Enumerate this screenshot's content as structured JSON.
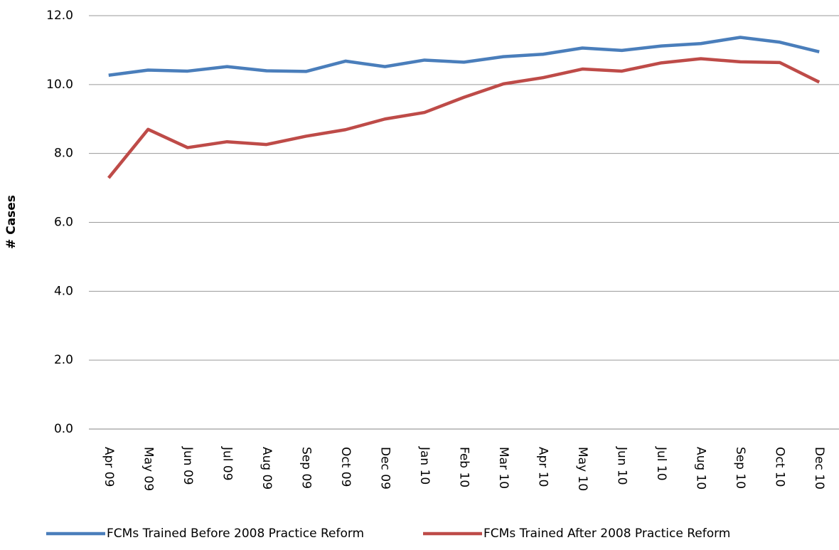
{
  "chart_data": {
    "type": "line",
    "y_label": "# Cases",
    "categories": [
      "Apr 09",
      "May 09",
      "Jun 09",
      "Jul 09",
      "Aug 09",
      "Sep 09",
      "Oct 09",
      "Dec 09",
      "Jan 10",
      "Feb 10",
      "Mar 10",
      "Apr 10",
      "May 10",
      "Jun 10",
      "Jul 10",
      "Aug 10",
      "Sep 10",
      "Oct 10",
      "Dec 10"
    ],
    "series": [
      {
        "name": "FCMs Trained Before 2008 Practice Reform",
        "color": "#4a7ebb",
        "values": [
          10.27,
          10.42,
          10.39,
          10.52,
          10.4,
          10.38,
          10.68,
          10.52,
          10.71,
          10.65,
          10.81,
          10.88,
          11.06,
          10.99,
          11.12,
          11.19,
          11.37,
          11.23,
          10.95
        ]
      },
      {
        "name": "FCMs Trained After 2008 Practice Reform",
        "color": "#be4b48",
        "values": [
          7.29,
          8.7,
          8.17,
          8.34,
          8.26,
          8.5,
          8.69,
          9.0,
          9.19,
          9.63,
          10.02,
          10.2,
          10.45,
          10.39,
          10.63,
          10.75,
          10.66,
          10.64,
          10.07
        ]
      }
    ],
    "ylim": [
      0,
      12
    ],
    "yticks": [
      {
        "value": 0,
        "label": "0.0"
      },
      {
        "value": 2,
        "label": "2.0"
      },
      {
        "value": 4,
        "label": "4.0"
      },
      {
        "value": 6,
        "label": "6.0"
      },
      {
        "value": 8,
        "label": "8.0"
      },
      {
        "value": 10,
        "label": "10.0"
      },
      {
        "value": 12,
        "label": "12.0"
      }
    ],
    "grid": true,
    "legend": "bottom"
  }
}
